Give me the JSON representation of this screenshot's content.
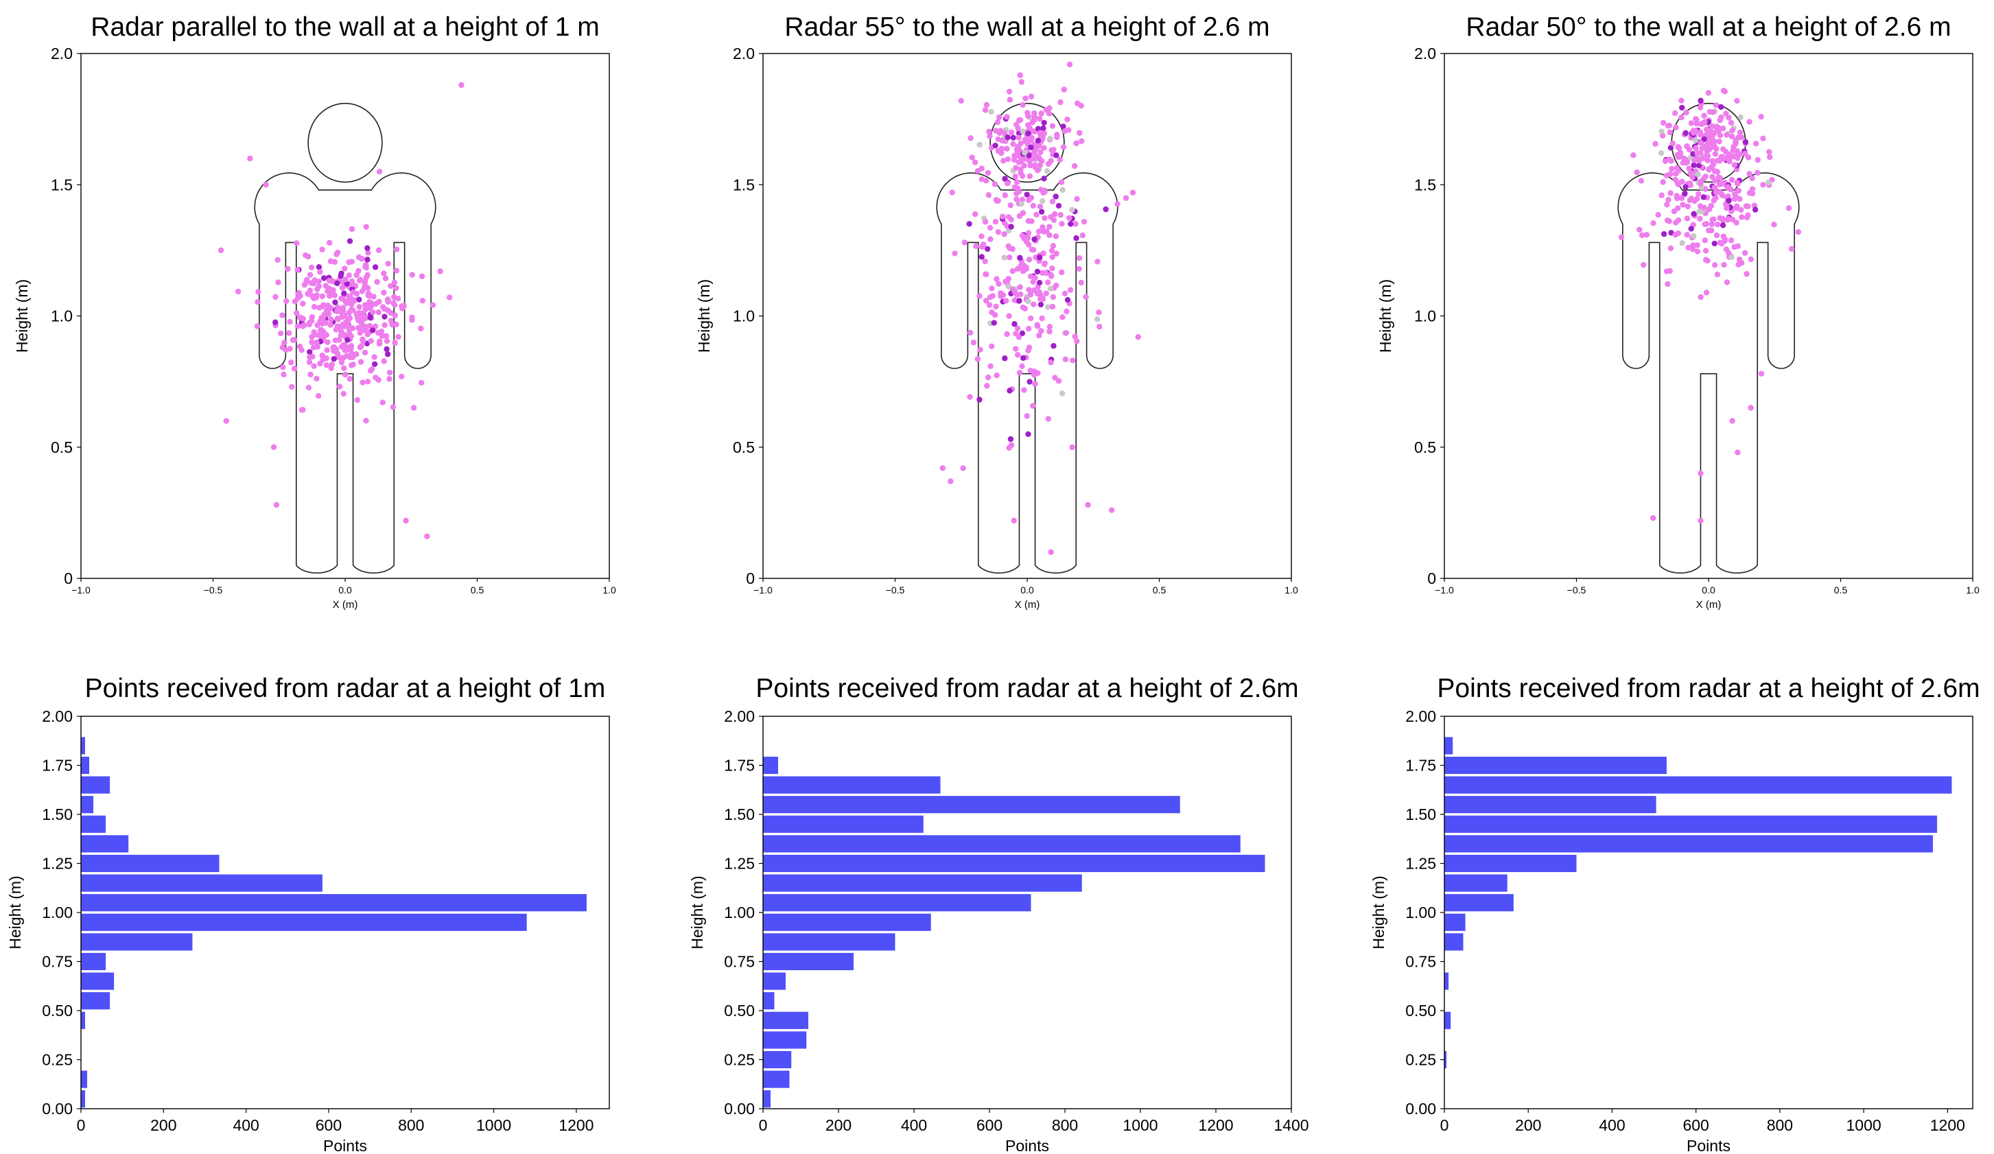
{
  "colors": {
    "bar": "#5050f8",
    "point_light": "#ee7dee",
    "point_dark": "#a020c8",
    "point_grey": "#c8c8c8",
    "outline": "#222222"
  },
  "chart_data": [
    {
      "type": "scatter",
      "title": "Radar parallel to the wall at a height of 1 m",
      "xlabel": "X (m)",
      "ylabel": "Height (m)",
      "xlim": [
        -1.0,
        1.0
      ],
      "ylim": [
        0,
        2.0
      ],
      "xticks": [
        "−1.0",
        "−0.5",
        "0.0",
        "0.5",
        "1.0"
      ],
      "yticks": [
        "0",
        "0.5",
        "1.0",
        "1.5",
        "2.0"
      ],
      "points": {
        "x_center": 0.0,
        "x_spread": 0.12,
        "y_center": 1.0,
        "y_spread": 0.12,
        "count": 420,
        "head_fraction": 0.0,
        "dark_fraction": 0.08,
        "grey_fraction": 0.0,
        "outliers": [
          [
            0.44,
            1.88
          ],
          [
            -0.47,
            1.25
          ],
          [
            -0.45,
            0.6
          ],
          [
            -0.26,
            0.28
          ],
          [
            0.23,
            0.22
          ],
          [
            0.31,
            0.16
          ],
          [
            -0.36,
            1.6
          ],
          [
            0.26,
            0.65
          ],
          [
            -0.27,
            0.5
          ],
          [
            0.13,
            1.55
          ],
          [
            0.36,
            1.17
          ],
          [
            -0.3,
            1.5
          ]
        ]
      }
    },
    {
      "type": "scatter",
      "title": "Radar 55° to the wall at a height of 2.6 m",
      "xlabel": "X (m)",
      "ylabel": "Height (m)",
      "xlim": [
        -1.0,
        1.0
      ],
      "ylim": [
        0,
        2.0
      ],
      "xticks": [
        "−1.0",
        "−0.5",
        "0.0",
        "0.5",
        "1.0"
      ],
      "yticks": [
        "0",
        "0.5",
        "1.0",
        "1.5",
        "2.0"
      ],
      "points": {
        "x_center": 0.0,
        "x_spread": 0.11,
        "y_center": 1.22,
        "y_spread": 0.28,
        "count": 460,
        "head_fraction": 0.28,
        "dark_fraction": 0.12,
        "grey_fraction": 0.05,
        "outliers": [
          [
            -0.32,
            0.42
          ],
          [
            -0.29,
            0.37
          ],
          [
            0.23,
            0.28
          ],
          [
            0.32,
            0.26
          ],
          [
            0.42,
            0.92
          ],
          [
            0.4,
            1.47
          ],
          [
            0.09,
            0.1
          ],
          [
            -0.25,
            1.82
          ],
          [
            0.19,
            1.81
          ],
          [
            -0.05,
            0.22
          ]
        ]
      }
    },
    {
      "type": "scatter",
      "title": "Radar 50° to the wall at a height of 2.6 m",
      "xlabel": "X (m)",
      "ylabel": "Height (m)",
      "xlim": [
        -1.0,
        1.0
      ],
      "ylim": [
        0,
        2.0
      ],
      "xticks": [
        "−1.0",
        "−0.5",
        "0.0",
        "0.5",
        "1.0"
      ],
      "yticks": [
        "0",
        "0.5",
        "1.0",
        "1.5",
        "2.0"
      ],
      "points": {
        "x_center": 0.0,
        "x_spread": 0.11,
        "y_center": 1.45,
        "y_spread": 0.14,
        "count": 420,
        "head_fraction": 0.32,
        "dark_fraction": 0.1,
        "grey_fraction": 0.05,
        "outliers": [
          [
            -0.21,
            0.23
          ],
          [
            -0.03,
            0.22
          ],
          [
            -0.03,
            0.4
          ],
          [
            0.11,
            0.48
          ],
          [
            0.09,
            0.6
          ],
          [
            0.16,
            0.65
          ],
          [
            0.34,
            1.32
          ],
          [
            -0.33,
            1.3
          ],
          [
            0.2,
            0.78
          ],
          [
            0.0,
            1.85
          ]
        ]
      }
    },
    {
      "type": "bar",
      "orientation": "horizontal",
      "title": "Points received from radar at a height of 1m",
      "xlabel": "Points",
      "ylabel": "Height (m)",
      "xlim": [
        0,
        1280
      ],
      "ylim": [
        0,
        2.0
      ],
      "xticks": [
        "0",
        "200",
        "400",
        "600",
        "800",
        "1000",
        "1200"
      ],
      "yticks": [
        "0.00",
        "0.25",
        "0.50",
        "0.75",
        "1.00",
        "1.25",
        "1.50",
        "1.75",
        "2.00"
      ],
      "bin_width": 0.1,
      "bins": [
        0.05,
        0.15,
        0.25,
        0.35,
        0.45,
        0.55,
        0.65,
        0.75,
        0.85,
        0.95,
        1.05,
        1.15,
        1.25,
        1.35,
        1.45,
        1.55,
        1.65,
        1.75,
        1.85
      ],
      "values": [
        10,
        15,
        0,
        0,
        10,
        70,
        80,
        60,
        270,
        1080,
        1225,
        585,
        335,
        115,
        60,
        30,
        70,
        20,
        10
      ]
    },
    {
      "type": "bar",
      "orientation": "horizontal",
      "title": "Points received from radar at a height of 2.6m",
      "xlabel": "Points",
      "ylabel": "Height (m)",
      "xlim": [
        0,
        1400
      ],
      "ylim": [
        0,
        2.0
      ],
      "xticks": [
        "0",
        "200",
        "400",
        "600",
        "800",
        "1000",
        "1200",
        "1400"
      ],
      "yticks": [
        "0.00",
        "0.25",
        "0.50",
        "0.75",
        "1.00",
        "1.25",
        "1.50",
        "1.75",
        "2.00"
      ],
      "bin_width": 0.1,
      "bins": [
        0.05,
        0.15,
        0.25,
        0.35,
        0.45,
        0.55,
        0.65,
        0.75,
        0.85,
        0.95,
        1.05,
        1.15,
        1.25,
        1.35,
        1.45,
        1.55,
        1.65,
        1.75,
        1.85
      ],
      "values": [
        20,
        70,
        75,
        115,
        120,
        30,
        60,
        240,
        350,
        445,
        710,
        845,
        1330,
        1265,
        425,
        1105,
        470,
        40,
        0
      ]
    },
    {
      "type": "bar",
      "orientation": "horizontal",
      "title": "Points received from radar at a height of 2.6m",
      "xlabel": "Points",
      "ylabel": "Height (m)",
      "xlim": [
        0,
        1260
      ],
      "ylim": [
        0,
        2.0
      ],
      "xticks": [
        "0",
        "200",
        "400",
        "600",
        "800",
        "1000",
        "1200"
      ],
      "yticks": [
        "0.00",
        "0.25",
        "0.50",
        "0.75",
        "1.00",
        "1.25",
        "1.50",
        "1.75",
        "2.00"
      ],
      "bin_width": 0.1,
      "bins": [
        0.05,
        0.15,
        0.25,
        0.35,
        0.45,
        0.55,
        0.65,
        0.75,
        0.85,
        0.95,
        1.05,
        1.15,
        1.25,
        1.35,
        1.45,
        1.55,
        1.65,
        1.75,
        1.85
      ],
      "values": [
        0,
        0,
        5,
        0,
        15,
        0,
        10,
        0,
        45,
        50,
        165,
        150,
        315,
        1165,
        1175,
        505,
        1210,
        530,
        20
      ]
    }
  ]
}
